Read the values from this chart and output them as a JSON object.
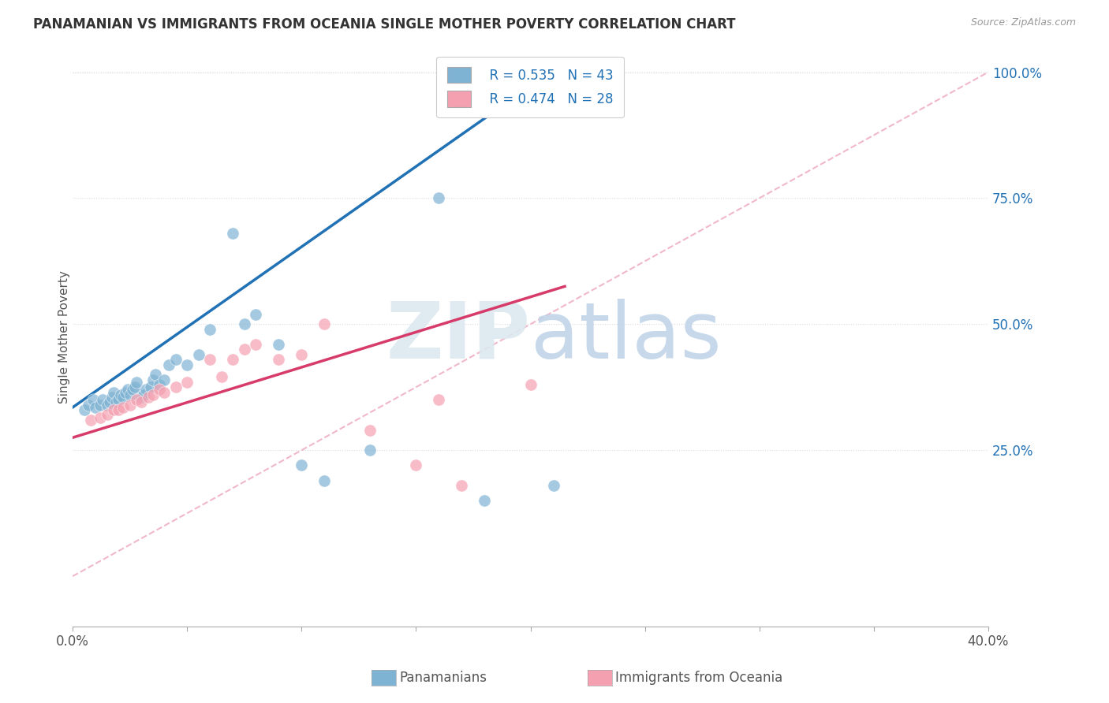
{
  "title": "PANAMANIAN VS IMMIGRANTS FROM OCEANIA SINGLE MOTHER POVERTY CORRELATION CHART",
  "source": "Source: ZipAtlas.com",
  "xlabel_left": "Panamanians",
  "xlabel_right": "Immigrants from Oceania",
  "ylabel": "Single Mother Poverty",
  "xmin": 0.0,
  "xmax": 0.4,
  "ymin": -0.1,
  "ymax": 1.05,
  "xticks": [
    0.0,
    0.05,
    0.1,
    0.15,
    0.2,
    0.25,
    0.3,
    0.35,
    0.4
  ],
  "xtick_labels": [
    "0.0%",
    "",
    "",
    "",
    "",
    "",
    "",
    "",
    "40.0%"
  ],
  "ytick_right_vals": [
    0.25,
    0.5,
    0.75,
    1.0
  ],
  "ytick_right_labels": [
    "25.0%",
    "50.0%",
    "75.0%",
    "100.0%"
  ],
  "legend_blue_r": "R = 0.535",
  "legend_blue_n": "N = 43",
  "legend_pink_r": "R = 0.474",
  "legend_pink_n": "N = 28",
  "blue_dot_color": "#7fb3d3",
  "pink_dot_color": "#f4a0b0",
  "blue_line_color": "#2171b5",
  "pink_line_color": "#d63b6a",
  "ref_line_color": "#f0b8c8",
  "watermark_zip_color": "#e0e8f0",
  "watermark_atlas_color": "#c5d8ea",
  "blue_dots_x": [
    0.005,
    0.007,
    0.009,
    0.01,
    0.012,
    0.013,
    0.015,
    0.016,
    0.017,
    0.018,
    0.019,
    0.02,
    0.021,
    0.022,
    0.023,
    0.024,
    0.025,
    0.026,
    0.027,
    0.028,
    0.03,
    0.031,
    0.032,
    0.034,
    0.035,
    0.036,
    0.038,
    0.04,
    0.042,
    0.045,
    0.05,
    0.055,
    0.06,
    0.07,
    0.075,
    0.08,
    0.09,
    0.1,
    0.11,
    0.13,
    0.16,
    0.18,
    0.21
  ],
  "blue_dots_y": [
    0.33,
    0.34,
    0.35,
    0.335,
    0.34,
    0.35,
    0.34,
    0.345,
    0.355,
    0.365,
    0.345,
    0.35,
    0.36,
    0.355,
    0.365,
    0.37,
    0.36,
    0.37,
    0.375,
    0.385,
    0.355,
    0.36,
    0.37,
    0.375,
    0.39,
    0.4,
    0.38,
    0.39,
    0.42,
    0.43,
    0.42,
    0.44,
    0.49,
    0.68,
    0.5,
    0.52,
    0.46,
    0.22,
    0.19,
    0.25,
    0.75,
    0.15,
    0.18
  ],
  "pink_dots_x": [
    0.008,
    0.012,
    0.015,
    0.018,
    0.02,
    0.022,
    0.025,
    0.028,
    0.03,
    0.033,
    0.035,
    0.038,
    0.04,
    0.045,
    0.05,
    0.06,
    0.065,
    0.07,
    0.075,
    0.08,
    0.09,
    0.1,
    0.11,
    0.13,
    0.15,
    0.16,
    0.17,
    0.2
  ],
  "pink_dots_y": [
    0.31,
    0.315,
    0.32,
    0.33,
    0.33,
    0.335,
    0.34,
    0.35,
    0.345,
    0.355,
    0.36,
    0.37,
    0.365,
    0.375,
    0.385,
    0.43,
    0.395,
    0.43,
    0.45,
    0.46,
    0.43,
    0.44,
    0.5,
    0.29,
    0.22,
    0.35,
    0.18,
    0.38
  ],
  "blue_line_x": [
    0.0,
    0.215
  ],
  "blue_line_y": [
    0.335,
    1.02
  ],
  "pink_line_x": [
    0.0,
    0.215
  ],
  "pink_line_y": [
    0.275,
    0.575
  ],
  "ref_line_x": [
    0.0,
    0.4
  ],
  "ref_line_y": [
    0.0,
    1.0
  ],
  "dot_size": 120,
  "dot_alpha": 0.7
}
